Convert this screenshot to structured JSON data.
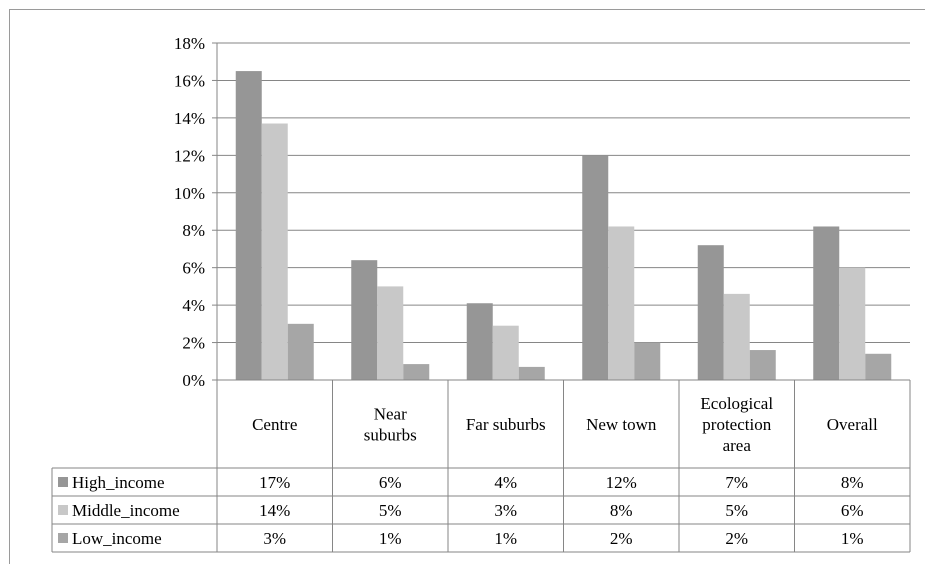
{
  "chart_data": {
    "type": "bar",
    "categories": [
      "Centre",
      "Near suburbs",
      "Far suburbs",
      "New town",
      "Ecological protection area",
      "Overall"
    ],
    "category_lines": [
      [
        "Centre"
      ],
      [
        "Near",
        "suburbs"
      ],
      [
        "Far suburbs"
      ],
      [
        "New town"
      ],
      [
        "Ecological",
        "protection",
        "area"
      ],
      [
        "Overall"
      ]
    ],
    "series": [
      {
        "name": "High_income",
        "color": "#969696",
        "values": [
          16.5,
          6.4,
          4.1,
          12.0,
          7.2,
          8.2
        ],
        "table_labels": [
          "17%",
          "6%",
          "4%",
          "12%",
          "7%",
          "8%"
        ]
      },
      {
        "name": "Middle_income",
        "color": "#c8c8c8",
        "values": [
          13.7,
          5.0,
          2.9,
          8.2,
          4.6,
          6.0
        ],
        "table_labels": [
          "14%",
          "5%",
          "3%",
          "8%",
          "5%",
          "6%"
        ]
      },
      {
        "name": "Low_income",
        "color": "#a6a6a6",
        "values": [
          3.0,
          0.85,
          0.7,
          2.0,
          1.6,
          1.4
        ],
        "table_labels": [
          "3%",
          "1%",
          "1%",
          "2%",
          "2%",
          "1%"
        ]
      }
    ],
    "ylim": [
      0,
      18
    ],
    "yticks": [
      0,
      2,
      4,
      6,
      8,
      10,
      12,
      14,
      16,
      18
    ],
    "ytick_labels": [
      "0%",
      "2%",
      "4%",
      "6%",
      "8%",
      "10%",
      "12%",
      "14%",
      "16%",
      "18%"
    ],
    "grid": true,
    "legend": "data-table",
    "title": "",
    "xlabel": "",
    "ylabel": ""
  }
}
